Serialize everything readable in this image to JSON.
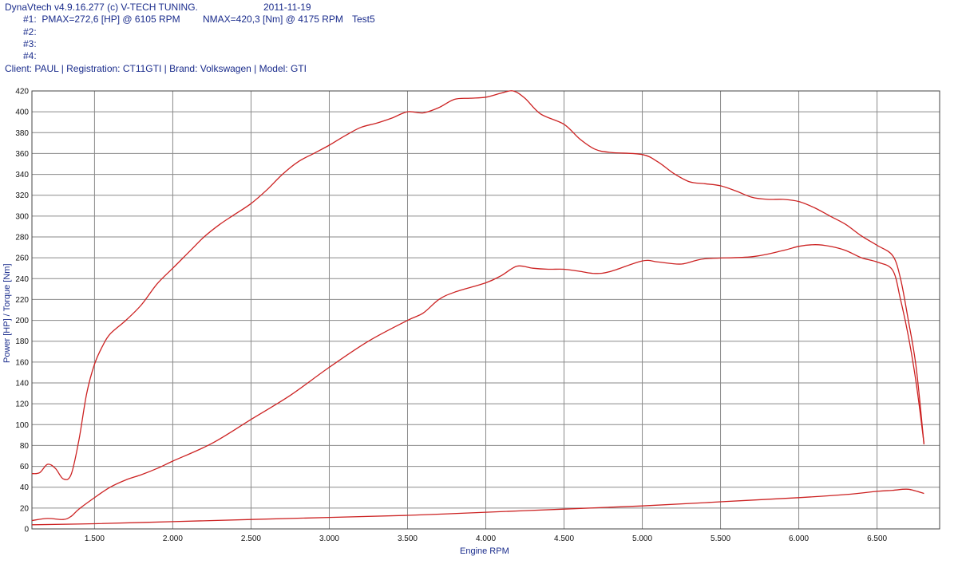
{
  "header": {
    "app": "DynaVtech v4.9.16.277 (c) V-TECH TUNING.",
    "date": "2011-11-19",
    "run1": "#1:  PMAX=272,6 [HP] @ 6105 RPM",
    "run1_torque": "NMAX=420,3 [Nm] @ 4175 RPM",
    "run1_name": "Test5",
    "run2": "#2:",
    "run3": "#3:",
    "run4": "#4:",
    "client": "Client: PAUL | Registration: CT11GTI | Brand: Volkswagen | Model: GTI"
  },
  "colors": {
    "curve": "#cc2222",
    "grid": "#8a8a8a",
    "header_text": "#1a2c8c"
  },
  "chart_data": {
    "type": "line",
    "xlabel": "Engine RPM",
    "ylabel": "Power [HP] / Torque [Nm]",
    "xlim": [
      1100,
      6900
    ],
    "ylim": [
      0,
      420
    ],
    "x_ticks": [
      1500,
      2000,
      2500,
      3000,
      3500,
      4000,
      4500,
      5000,
      5500,
      6000,
      6500
    ],
    "x_tick_labels": [
      "1.500",
      "2.000",
      "2.500",
      "3.000",
      "3.500",
      "4.000",
      "4.500",
      "5.000",
      "5.500",
      "6.000",
      "6.500"
    ],
    "y_ticks": [
      0,
      20,
      40,
      60,
      80,
      100,
      120,
      140,
      160,
      180,
      200,
      220,
      240,
      260,
      280,
      300,
      320,
      340,
      360,
      380,
      400,
      420
    ],
    "grid": true,
    "series": [
      {
        "points": [
          [
            1100,
            53
          ],
          [
            1150,
            54
          ],
          [
            1200,
            62
          ],
          [
            1250,
            58
          ],
          [
            1300,
            48
          ],
          [
            1350,
            52
          ],
          [
            1400,
            85
          ],
          [
            1450,
            130
          ],
          [
            1500,
            158
          ],
          [
            1550,
            175
          ],
          [
            1600,
            187
          ],
          [
            1700,
            200
          ],
          [
            1800,
            215
          ],
          [
            1900,
            235
          ],
          [
            2000,
            250
          ],
          [
            2100,
            265
          ],
          [
            2200,
            280
          ],
          [
            2300,
            292
          ],
          [
            2400,
            302
          ],
          [
            2500,
            312
          ],
          [
            2600,
            325
          ],
          [
            2700,
            340
          ],
          [
            2800,
            352
          ],
          [
            2900,
            360
          ],
          [
            3000,
            368
          ],
          [
            3100,
            377
          ],
          [
            3200,
            385
          ],
          [
            3300,
            389
          ],
          [
            3400,
            394
          ],
          [
            3500,
            400
          ],
          [
            3600,
            399
          ],
          [
            3700,
            404
          ],
          [
            3800,
            412
          ],
          [
            3900,
            413
          ],
          [
            4000,
            414
          ],
          [
            4100,
            418
          ],
          [
            4175,
            420
          ],
          [
            4250,
            413
          ],
          [
            4350,
            398
          ],
          [
            4500,
            388
          ],
          [
            4600,
            374
          ],
          [
            4700,
            364
          ],
          [
            4800,
            361
          ],
          [
            5000,
            359
          ],
          [
            5100,
            352
          ],
          [
            5200,
            341
          ],
          [
            5300,
            333
          ],
          [
            5400,
            331
          ],
          [
            5500,
            329
          ],
          [
            5600,
            324
          ],
          [
            5700,
            318
          ],
          [
            5800,
            316
          ],
          [
            5900,
            316
          ],
          [
            6000,
            314
          ],
          [
            6100,
            308
          ],
          [
            6200,
            300
          ],
          [
            6300,
            292
          ],
          [
            6400,
            281
          ],
          [
            6500,
            272
          ],
          [
            6600,
            262
          ],
          [
            6650,
            240
          ],
          [
            6700,
            200
          ],
          [
            6750,
            155
          ],
          [
            6800,
            81
          ]
        ]
      },
      {
        "points": [
          [
            1100,
            8
          ],
          [
            1200,
            10
          ],
          [
            1300,
            9
          ],
          [
            1350,
            12
          ],
          [
            1400,
            19
          ],
          [
            1500,
            30
          ],
          [
            1600,
            40
          ],
          [
            1700,
            47
          ],
          [
            1800,
            52
          ],
          [
            1900,
            58
          ],
          [
            2000,
            65
          ],
          [
            2250,
            82
          ],
          [
            2500,
            105
          ],
          [
            2750,
            128
          ],
          [
            3000,
            155
          ],
          [
            3250,
            180
          ],
          [
            3500,
            200
          ],
          [
            3600,
            207
          ],
          [
            3700,
            220
          ],
          [
            3800,
            227
          ],
          [
            4000,
            236
          ],
          [
            4100,
            243
          ],
          [
            4200,
            252
          ],
          [
            4300,
            250
          ],
          [
            4400,
            249
          ],
          [
            4500,
            249
          ],
          [
            4600,
            247
          ],
          [
            4700,
            245
          ],
          [
            4800,
            247
          ],
          [
            5000,
            257
          ],
          [
            5100,
            256
          ],
          [
            5250,
            254
          ],
          [
            5400,
            259
          ],
          [
            5700,
            261
          ],
          [
            5900,
            267
          ],
          [
            6000,
            271
          ],
          [
            6105,
            272.6
          ],
          [
            6200,
            271
          ],
          [
            6300,
            267
          ],
          [
            6400,
            260
          ],
          [
            6500,
            256
          ],
          [
            6600,
            248
          ],
          [
            6650,
            220
          ],
          [
            6700,
            185
          ],
          [
            6750,
            140
          ],
          [
            6800,
            82
          ]
        ]
      },
      {
        "points": [
          [
            1100,
            4
          ],
          [
            1500,
            5
          ],
          [
            2000,
            7
          ],
          [
            2500,
            9
          ],
          [
            3000,
            11
          ],
          [
            3500,
            13
          ],
          [
            4000,
            16
          ],
          [
            4500,
            19
          ],
          [
            5000,
            22
          ],
          [
            5500,
            26
          ],
          [
            6000,
            30
          ],
          [
            6300,
            33
          ],
          [
            6500,
            36
          ],
          [
            6600,
            37
          ],
          [
            6700,
            38
          ],
          [
            6800,
            34
          ]
        ]
      }
    ]
  }
}
